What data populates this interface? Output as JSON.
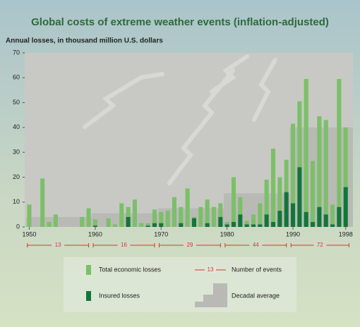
{
  "chart_data": {
    "type": "bar",
    "title": "Global costs of extreme weather events (inflation-adjusted)",
    "subtitle": "Annual losses, in thousand million U.S. dollars",
    "x": [
      1950,
      1951,
      1952,
      1953,
      1954,
      1955,
      1956,
      1957,
      1958,
      1959,
      1960,
      1961,
      1962,
      1963,
      1964,
      1965,
      1966,
      1967,
      1968,
      1969,
      1970,
      1971,
      1972,
      1973,
      1974,
      1975,
      1976,
      1977,
      1978,
      1979,
      1980,
      1981,
      1982,
      1983,
      1984,
      1985,
      1986,
      1987,
      1988,
      1989,
      1990,
      1991,
      1992,
      1993,
      1994,
      1995,
      1996,
      1997,
      1998
    ],
    "xlim": [
      1949.3,
      1999.1
    ],
    "xticks": [
      1950,
      1960,
      1970,
      1980,
      1990,
      1998
    ],
    "ylim": [
      0,
      70
    ],
    "yticks": [
      0,
      10,
      20,
      30,
      40,
      50,
      60,
      70
    ],
    "series": [
      {
        "name": "Total economic losses",
        "color": "#7cbf69",
        "values": [
          9,
          0,
          19.5,
          2,
          5,
          0,
          0,
          0,
          4,
          7.5,
          3,
          0,
          3.5,
          1,
          9.5,
          8,
          11,
          1.5,
          1.5,
          7,
          6,
          6.5,
          12,
          8,
          15.5,
          4,
          8,
          11,
          8,
          9.5,
          2,
          20,
          12,
          2.5,
          5,
          9.5,
          19,
          31.5,
          20,
          27,
          41.5,
          50.5,
          59.5,
          26.5,
          44.5,
          43,
          9,
          59.5,
          40
        ]
      },
      {
        "name": "Insured losses",
        "color": "#12763a",
        "values": [
          0,
          0,
          0,
          0,
          0,
          0,
          0,
          0,
          0,
          0,
          0.5,
          0,
          0,
          0,
          0,
          4,
          0,
          0,
          0.5,
          1.5,
          1.5,
          0,
          0,
          1.5,
          0,
          3.5,
          0,
          1.5,
          0,
          4,
          1,
          2,
          5,
          1,
          1,
          1,
          5,
          2,
          6.5,
          14,
          9.5,
          24,
          6,
          2,
          8,
          5,
          1,
          8,
          16
        ]
      }
    ],
    "decadal_average": {
      "name": "Decadal average",
      "color": "#b9bab6",
      "x": [
        1950,
        1960,
        1970,
        1980,
        1990
      ],
      "values": [
        4,
        5.5,
        7.5,
        13.5,
        40
      ]
    },
    "events": {
      "name": "Number of events",
      "color": "#d23b2a",
      "values": [
        13,
        16,
        29,
        44,
        72
      ]
    }
  }
}
